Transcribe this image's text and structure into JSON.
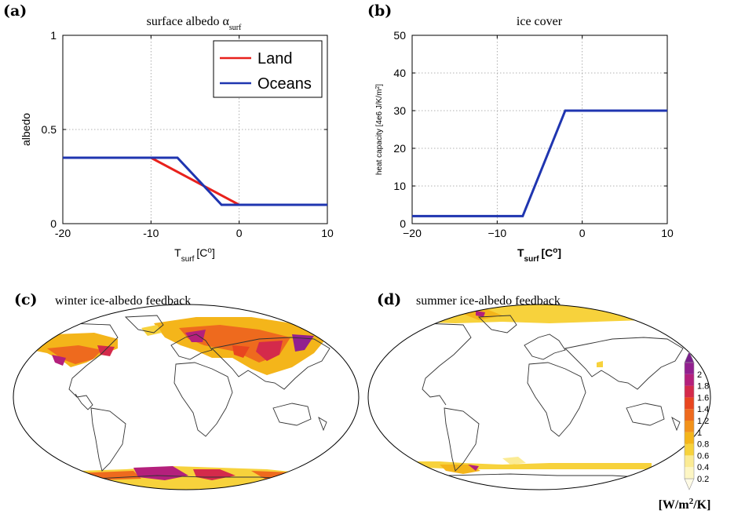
{
  "chart_data": [
    {
      "panel": "(a)",
      "type": "line",
      "title": "surface albedo α",
      "title_sub": "surf",
      "xlabel": "T",
      "xlabel_sub": "surf",
      "xlabel_unit": "[C",
      "xlabel_unit_sup": "o",
      "xlabel_unit_end": "]",
      "ylabel": "albedo",
      "xlim": [
        -20,
        10
      ],
      "ylim": [
        0,
        1
      ],
      "xticks": [
        -20,
        -10,
        0,
        10
      ],
      "xtick_labels": [
        "-20",
        "-10",
        "0",
        "10"
      ],
      "yticks": [
        0,
        0.5,
        1
      ],
      "ytick_labels": [
        "0",
        "0.5",
        "1"
      ],
      "grid": true,
      "legend_position": "top-right",
      "series": [
        {
          "name": "Land",
          "color": "#e8211c",
          "x": [
            -20,
            -10,
            0,
            10
          ],
          "y": [
            0.35,
            0.35,
            0.1,
            0.1
          ]
        },
        {
          "name": "Oceans",
          "color": "#1f35b0",
          "x": [
            -20,
            -7,
            -2,
            10
          ],
          "y": [
            0.35,
            0.35,
            0.1,
            0.1
          ]
        }
      ]
    },
    {
      "panel": "(b)",
      "type": "line",
      "title": "ice cover",
      "xlabel": "T",
      "xlabel_sub": "surf",
      "xlabel_unit": "[C",
      "xlabel_unit_sup": "o",
      "xlabel_unit_end": "]",
      "ylabel": "heat capacity [4e6 J/K/m",
      "ylabel_sup": "2",
      "ylabel_end": "]",
      "xlim": [
        -20,
        10
      ],
      "ylim": [
        0,
        50
      ],
      "xticks": [
        -20,
        -10,
        0,
        10
      ],
      "xtick_labels": [
        "−20",
        "−10",
        "0",
        "10"
      ],
      "yticks": [
        0,
        10,
        20,
        30,
        40,
        50
      ],
      "ytick_labels": [
        "0",
        "10",
        "20",
        "30",
        "40",
        "50"
      ],
      "grid": true,
      "series": [
        {
          "color": "#1f35b0",
          "x": [
            -20,
            -7,
            -2,
            10
          ],
          "y": [
            2,
            2,
            30,
            30
          ]
        }
      ]
    },
    {
      "panel": "(c)",
      "type": "heatmap",
      "title": "winter ice-albedo feedback"
    },
    {
      "panel": "(d)",
      "type": "heatmap",
      "title": "summer ice-albedo feedback"
    }
  ],
  "colorbar": {
    "ticks": [
      "0.2",
      "0.4",
      "0.6",
      "0.8",
      "1",
      "1.2",
      "1.4",
      "1.6",
      "1.8",
      "2"
    ],
    "colors": [
      "#fdf6c4",
      "#fbeb94",
      "#f7d23c",
      "#f4b51a",
      "#f2921a",
      "#ee6a1e",
      "#e8461f",
      "#d42a4b",
      "#b4207c",
      "#92208f"
    ],
    "unit_pre": "[W/m",
    "unit_sup": "2",
    "unit_post": "/K]"
  }
}
